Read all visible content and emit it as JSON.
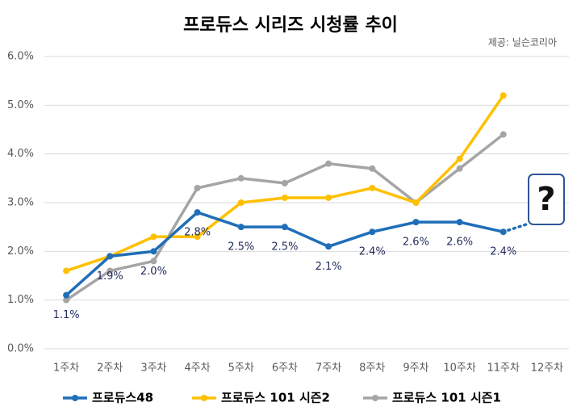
{
  "chart_data": {
    "type": "line",
    "title": "프로듀스 시리즈 시청률 추이",
    "source": "제공: 닐슨코리아",
    "annotation": "?",
    "categories": [
      "1주차",
      "2주차",
      "3주차",
      "4주차",
      "5주차",
      "6주차",
      "7주차",
      "8주차",
      "9주차",
      "10주차",
      "11주차",
      "12주차"
    ],
    "series": [
      {
        "name": "프로듀스48",
        "color": "#1f6eb8",
        "values": [
          1.1,
          1.9,
          2.0,
          2.8,
          2.5,
          2.5,
          2.1,
          2.4,
          2.6,
          2.6,
          2.4,
          null
        ],
        "value_labels": [
          "1.1%",
          "1.9%",
          "2.0%",
          "2.8%",
          "2.5%",
          "2.5%",
          "2.1%",
          "2.4%",
          "2.6%",
          "2.6%",
          "2.4%",
          null
        ]
      },
      {
        "name": "프로듀스 101 시즌2",
        "color": "#ffc000",
        "values": [
          1.6,
          1.9,
          2.3,
          2.3,
          3.0,
          3.1,
          3.1,
          3.3,
          3.0,
          3.9,
          5.2,
          null
        ]
      },
      {
        "name": "프로듀스 101 시즌1",
        "color": "#a5a5a5",
        "values": [
          1.0,
          1.6,
          1.8,
          3.3,
          3.5,
          3.4,
          3.8,
          3.7,
          3.0,
          3.7,
          4.4,
          null
        ]
      }
    ],
    "ylim": [
      0,
      6
    ],
    "yticks": [
      {
        "value": 0,
        "label": "0.0%"
      },
      {
        "value": 1,
        "label": "1.0%"
      },
      {
        "value": 2,
        "label": "2.0%"
      },
      {
        "value": 3,
        "label": "3.0%"
      },
      {
        "value": 4,
        "label": "4.0%"
      },
      {
        "value": 5,
        "label": "5.0%"
      },
      {
        "value": 6,
        "label": "6.0%"
      }
    ],
    "grid": true,
    "legend": "bottom"
  }
}
